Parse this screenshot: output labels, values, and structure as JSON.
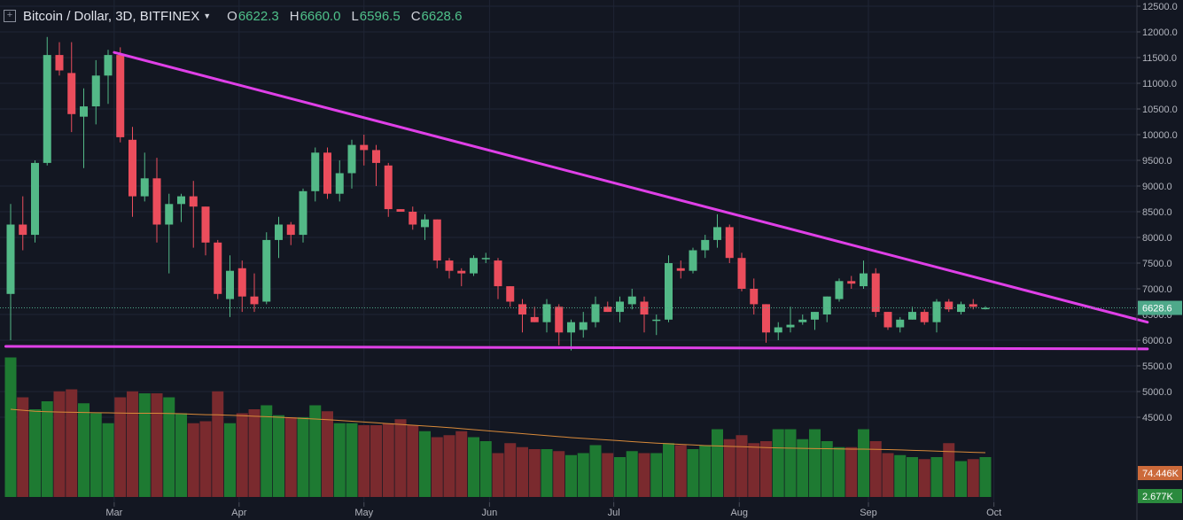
{
  "header": {
    "symbol": "Bitcoin / Dollar, 3D, BITFINEX",
    "open_label": "O",
    "open": "6622.3",
    "high_label": "H",
    "high": "6660.0",
    "low_label": "L",
    "low": "6596.5",
    "close_label": "C",
    "close": "6628.6"
  },
  "colors": {
    "background": "#131722",
    "up": "#53b987",
    "down": "#eb4d5c",
    "volume_up": "#1e7a32",
    "volume_down": "#7a2a2e",
    "trendline": "#e040e8",
    "volume_ma": "#d98a3a",
    "price_badge": "#4ea98a",
    "volume_badge": "#cc6a3a",
    "volume_badge2": "#2b8a3e",
    "axis_text": "#b2b5be",
    "grid": "#1f2535"
  },
  "chart_data": {
    "type": "candlestick",
    "title": "Bitcoin / Dollar, 3D, BITFINEX",
    "ylim": [
      4200,
      12600
    ],
    "y_ticks": [
      12500,
      12000,
      11500,
      11000,
      10500,
      10000,
      9500,
      9000,
      8500,
      8000,
      7500,
      7000,
      6500,
      6000,
      5500,
      5000,
      4500
    ],
    "y_tick_labels": [
      "12500.0",
      "12000.0",
      "11500.0",
      "11000.0",
      "10500.0",
      "10000.0",
      "9500.0",
      "9000.0",
      "8500.0",
      "8000.0",
      "7500.0",
      "7000.0",
      "6500.0",
      "6000.0",
      "5500.0",
      "5000.0",
      "4500.0"
    ],
    "x_tick_labels": [
      "Mar",
      "Apr",
      "May",
      "Jun",
      "Jul",
      "Aug",
      "Sep",
      "Oct"
    ],
    "x_tick_candle_index": [
      8.5,
      18.75,
      29,
      39.3,
      49.5,
      59.8,
      70.4,
      80.7
    ],
    "last_price": 6628.6,
    "last_price_label": "6628.6",
    "ohlc": [
      [
        6900,
        8650,
        6000,
        8250
      ],
      [
        8250,
        8800,
        7750,
        8050
      ],
      [
        8050,
        9500,
        7900,
        9450
      ],
      [
        9450,
        11900,
        9400,
        11550
      ],
      [
        11550,
        11800,
        11150,
        11250
      ],
      [
        11200,
        11800,
        10050,
        10400
      ],
      [
        10350,
        10900,
        9350,
        10550
      ],
      [
        10550,
        11450,
        10200,
        11150
      ],
      [
        11150,
        11650,
        10600,
        11550
      ],
      [
        11550,
        11700,
        9850,
        9950
      ],
      [
        9900,
        10150,
        8400,
        8800
      ],
      [
        8800,
        9650,
        8700,
        9150
      ],
      [
        9150,
        9550,
        7900,
        8250
      ],
      [
        8250,
        8850,
        7300,
        8650
      ],
      [
        8650,
        8850,
        8300,
        8800
      ],
      [
        8800,
        9100,
        7800,
        8600
      ],
      [
        8600,
        8600,
        7650,
        7900
      ],
      [
        7900,
        7950,
        6800,
        6900
      ],
      [
        6800,
        7650,
        6450,
        7350
      ],
      [
        7400,
        7550,
        6550,
        6850
      ],
      [
        6850,
        7300,
        6550,
        6700
      ],
      [
        6750,
        8100,
        6700,
        7950
      ],
      [
        7950,
        8400,
        7600,
        8250
      ],
      [
        8250,
        8300,
        7850,
        8050
      ],
      [
        8050,
        8950,
        7900,
        8900
      ],
      [
        8900,
        9750,
        8700,
        9650
      ],
      [
        9650,
        9750,
        8750,
        8850
      ],
      [
        8850,
        9500,
        8700,
        9250
      ],
      [
        9250,
        9900,
        8950,
        9800
      ],
      [
        9800,
        10000,
        9400,
        9700
      ],
      [
        9700,
        9800,
        9000,
        9450
      ],
      [
        9400,
        9450,
        8400,
        8550
      ],
      [
        8550,
        8550,
        8500,
        8500
      ],
      [
        8500,
        8600,
        8150,
        8250
      ],
      [
        8200,
        8450,
        7950,
        8350
      ],
      [
        8350,
        8350,
        7400,
        7550
      ],
      [
        7550,
        7600,
        7200,
        7350
      ],
      [
        7350,
        7400,
        7050,
        7300
      ],
      [
        7300,
        7650,
        7250,
        7600
      ],
      [
        7600,
        7700,
        7500,
        7600
      ],
      [
        7550,
        7600,
        6800,
        7050
      ],
      [
        7050,
        7050,
        6650,
        6750
      ],
      [
        6700,
        6800,
        6150,
        6500
      ],
      [
        6450,
        6650,
        6350,
        6350
      ],
      [
        6350,
        6800,
        6150,
        6700
      ],
      [
        6650,
        6700,
        5900,
        6150
      ],
      [
        6150,
        6400,
        5800,
        6350
      ],
      [
        6200,
        6550,
        6050,
        6350
      ],
      [
        6350,
        6850,
        6250,
        6700
      ],
      [
        6650,
        6750,
        6550,
        6550
      ],
      [
        6550,
        6850,
        6350,
        6750
      ],
      [
        6700,
        7000,
        6600,
        6850
      ],
      [
        6750,
        6850,
        6150,
        6500
      ],
      [
        6400,
        6500,
        6100,
        6400
      ],
      [
        6400,
        7650,
        6350,
        7500
      ],
      [
        7400,
        7550,
        7200,
        7350
      ],
      [
        7350,
        7800,
        7300,
        7750
      ],
      [
        7750,
        8050,
        7600,
        7950
      ],
      [
        7950,
        8450,
        7800,
        8200
      ],
      [
        8200,
        8250,
        7500,
        7600
      ],
      [
        7600,
        7700,
        6950,
        7000
      ],
      [
        7000,
        7200,
        6500,
        6700
      ],
      [
        6700,
        6700,
        5950,
        6150
      ],
      [
        6150,
        6350,
        6000,
        6250
      ],
      [
        6250,
        6650,
        6150,
        6300
      ],
      [
        6350,
        6500,
        6300,
        6400
      ],
      [
        6400,
        6550,
        6200,
        6550
      ],
      [
        6500,
        6850,
        6350,
        6850
      ],
      [
        6800,
        7200,
        6750,
        7150
      ],
      [
        7150,
        7250,
        7000,
        7100
      ],
      [
        7050,
        7550,
        7000,
        7300
      ],
      [
        7300,
        7400,
        6450,
        6550
      ],
      [
        6550,
        6550,
        6200,
        6250
      ],
      [
        6250,
        6450,
        6150,
        6400
      ],
      [
        6400,
        6650,
        6400,
        6550
      ],
      [
        6550,
        6600,
        6300,
        6350
      ],
      [
        6350,
        6800,
        6150,
        6750
      ],
      [
        6750,
        6800,
        6550,
        6600
      ],
      [
        6550,
        6750,
        6500,
        6700
      ],
      [
        6700,
        6800,
        6600,
        6650
      ],
      [
        6622.3,
        6660,
        6596.5,
        6628.6
      ]
    ],
    "volume": [
      70,
      50,
      44,
      48,
      53,
      54,
      47,
      42,
      37,
      50,
      53,
      52,
      52,
      50,
      42,
      37,
      38,
      53,
      37,
      42,
      44,
      46,
      41,
      40,
      40,
      46,
      43,
      37,
      37,
      36,
      36,
      37,
      39,
      36,
      33,
      30,
      31,
      33,
      30,
      28,
      22,
      27,
      25,
      24,
      24,
      23,
      21,
      22,
      26,
      22,
      20,
      23,
      22,
      22,
      27,
      26,
      24,
      26,
      34,
      29,
      31,
      27,
      28,
      34,
      34,
      29,
      34,
      28,
      25,
      25,
      34,
      28,
      22,
      21,
      20,
      19,
      20,
      27,
      18,
      19,
      20
    ],
    "volume_ma": [
      44,
      43.5,
      43,
      42.8,
      42.6,
      42.5,
      42.4,
      42.3,
      42.2,
      42.1,
      42,
      42,
      42,
      41.9,
      41.8,
      41.5,
      41.3,
      41.2,
      41,
      40.8,
      40.5,
      40.3,
      40,
      39.7,
      39.4,
      39.1,
      38.8,
      38.4,
      38,
      37.6,
      37.2,
      36.8,
      36.4,
      36,
      35.6,
      35.2,
      34.8,
      34.3,
      33.8,
      33.3,
      32.8,
      32.3,
      31.8,
      31.3,
      30.8,
      30.3,
      29.8,
      29.4,
      29,
      28.6,
      28.2,
      27.8,
      27.4,
      27,
      26.7,
      26.4,
      26.1,
      25.8,
      25.6,
      25.4,
      25.2,
      25,
      24.8,
      24.6,
      24.5,
      24.4,
      24.3,
      24.2,
      24.1,
      24,
      24,
      23.9,
      23.8,
      23.6,
      23.4,
      23.2,
      23,
      22.8,
      22.6,
      22.4,
      22.2
    ],
    "volume_badge_label": "74.446K",
    "volume_badge2_label": "2.677K",
    "trendlines": [
      {
        "from": {
          "candle": 8.5,
          "price": 11600
        },
        "to": {
          "candle": 93.3,
          "price": 6350
        }
      },
      {
        "from": {
          "candle": -0.4,
          "price": 5880
        },
        "to": {
          "candle": 93.3,
          "price": 5830
        }
      }
    ]
  }
}
